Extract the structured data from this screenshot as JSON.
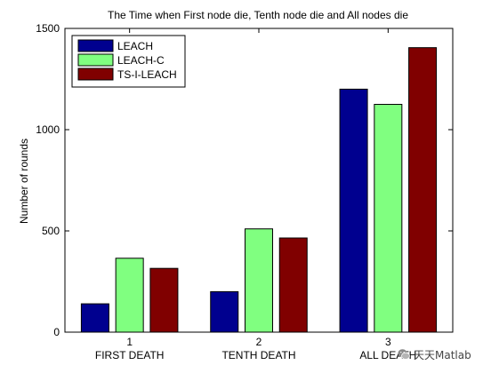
{
  "chart_data": {
    "type": "bar",
    "title": "The Time when First node die, Tenth node die and All nodes die",
    "xlabel": "",
    "ylabel": "Number of rounds",
    "x_ticks": [
      {
        "number": "1",
        "label": "FIRST DEATH"
      },
      {
        "number": "2",
        "label": "TENTH DEATH"
      },
      {
        "number": "3",
        "label": "ALL DEATH"
      }
    ],
    "series": [
      {
        "name": "LEACH",
        "color": "#00008f",
        "values": [
          140,
          200,
          1200
        ]
      },
      {
        "name": "LEACH-C",
        "color": "#80ff80",
        "values": [
          365,
          510,
          1125
        ]
      },
      {
        "name": "TS-I-LEACH",
        "color": "#800000",
        "values": [
          315,
          465,
          1405
        ]
      }
    ],
    "ylim": [
      0,
      1500
    ],
    "yticks": [
      0,
      500,
      1000,
      1500
    ],
    "grid": false,
    "legend_position": "top-left"
  },
  "watermark": {
    "icon": "wechat-icon",
    "text": "天天Matlab"
  }
}
